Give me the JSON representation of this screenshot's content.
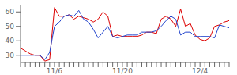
{
  "chart_data": {
    "type": "line",
    "categories": [
      null,
      null,
      null,
      null,
      null,
      null,
      null,
      "11/6",
      null,
      null,
      null,
      null,
      null,
      null,
      null,
      null,
      null,
      null,
      null,
      null,
      null,
      "11/20",
      null,
      null,
      null,
      null,
      null,
      null,
      null,
      null,
      null,
      null,
      null,
      null,
      null,
      null,
      null,
      "12/4",
      null,
      null,
      null,
      null,
      null,
      null
    ],
    "series": [
      {
        "color": "#dd0000",
        "values": [
          35,
          33,
          31,
          30,
          30,
          26,
          27,
          63,
          57,
          57,
          58,
          55,
          57,
          56,
          55,
          53,
          55,
          60,
          57,
          43,
          44,
          43,
          43,
          43,
          43,
          44,
          46,
          46,
          45,
          55,
          57,
          55,
          50,
          62,
          50,
          52,
          44,
          41,
          40,
          42,
          50,
          51,
          53,
          54
        ]
      },
      {
        "color": "#2244cc",
        "values": [
          30,
          30,
          30,
          30,
          30,
          27,
          32,
          50,
          53,
          57,
          58,
          57,
          61,
          55,
          53,
          48,
          42,
          46,
          50,
          43,
          42,
          43,
          44,
          44,
          44,
          46,
          46,
          46,
          47,
          50,
          54,
          57,
          55,
          44,
          46,
          46,
          43,
          43,
          43,
          43,
          42,
          51,
          50,
          49
        ]
      }
    ],
    "ylim": [
      25,
      65
    ],
    "yticks": [
      30,
      40,
      50,
      60
    ],
    "grid": false
  }
}
